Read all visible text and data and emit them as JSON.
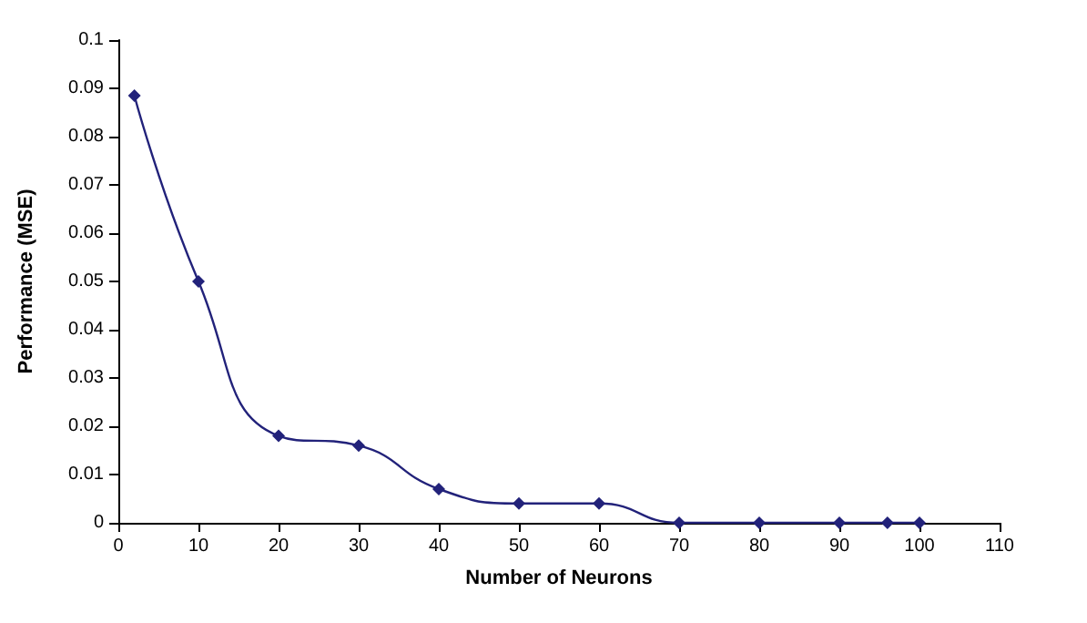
{
  "chart_data": {
    "type": "line",
    "xlabel": "Number of Neurons",
    "ylabel": "Performance (MSE)",
    "x": [
      2,
      10,
      20,
      30,
      40,
      50,
      60,
      70,
      80,
      90,
      96,
      100
    ],
    "series": [
      {
        "color": "#22227a",
        "values": [
          0.0885,
          0.05,
          0.018,
          0.016,
          0.007,
          0.004,
          0.004,
          0,
          0,
          0,
          0,
          0
        ]
      }
    ],
    "xlim": [
      0,
      110
    ],
    "xticks": [
      0,
      10,
      20,
      30,
      40,
      50,
      60,
      70,
      80,
      90,
      100,
      110
    ],
    "ylim": [
      0,
      0.1
    ],
    "yticks": [
      0,
      0.01,
      0.02,
      0.03,
      0.04,
      0.05,
      0.06,
      0.07,
      0.08,
      0.09,
      0.1
    ],
    "grid": false,
    "marker": "diamond",
    "line_style": "solid"
  }
}
